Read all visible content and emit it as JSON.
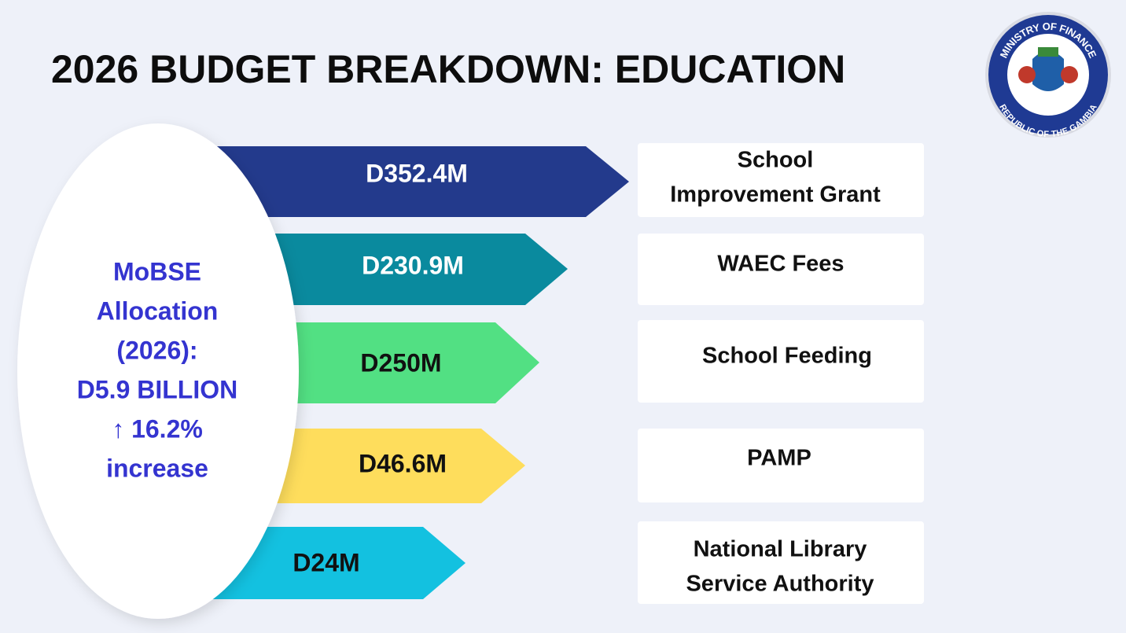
{
  "header": {
    "title": "2026 BUDGET BREAKDOWN: EDUCATION"
  },
  "logo": {
    "top_text": "MINISTRY OF FINANCE",
    "bottom_text": "REPUBLIC OF THE GAMBIA"
  },
  "summary": {
    "lines": [
      "MoBSE",
      "Allocation",
      "(2026):",
      "D5.9 BILLION",
      "↑ 16.2%",
      "increase"
    ]
  },
  "items": [
    {
      "amount": "D352.4M",
      "label_lines": [
        "School",
        "Improvement Grant"
      ]
    },
    {
      "amount": "D230.9M",
      "label_lines": [
        "WAEC Fees"
      ]
    },
    {
      "amount": "D250M",
      "label_lines": [
        "School Feeding"
      ]
    },
    {
      "amount": "D46.6M",
      "label_lines": [
        "PAMP"
      ]
    },
    {
      "amount": "D24M",
      "label_lines": [
        "National Library",
        "Service Authority"
      ]
    }
  ]
}
